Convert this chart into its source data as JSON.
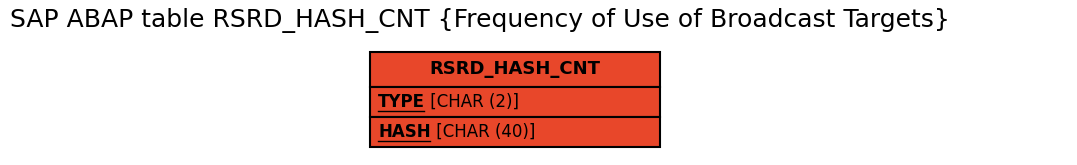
{
  "title": "SAP ABAP table RSRD_HASH_CNT {Frequency of Use of Broadcast Targets}",
  "title_fontsize": 18,
  "table_name": "RSRD_HASH_CNT",
  "fields": [
    {
      "label": "TYPE",
      "type_info": " [CHAR (2)]"
    },
    {
      "label": "HASH",
      "type_info": " [CHAR (40)]"
    }
  ],
  "box_fill_color": "#E8472A",
  "box_edge_color": "#000000",
  "text_color": "#000000",
  "background_color": "#ffffff",
  "header_fontsize": 13,
  "field_fontsize": 12
}
